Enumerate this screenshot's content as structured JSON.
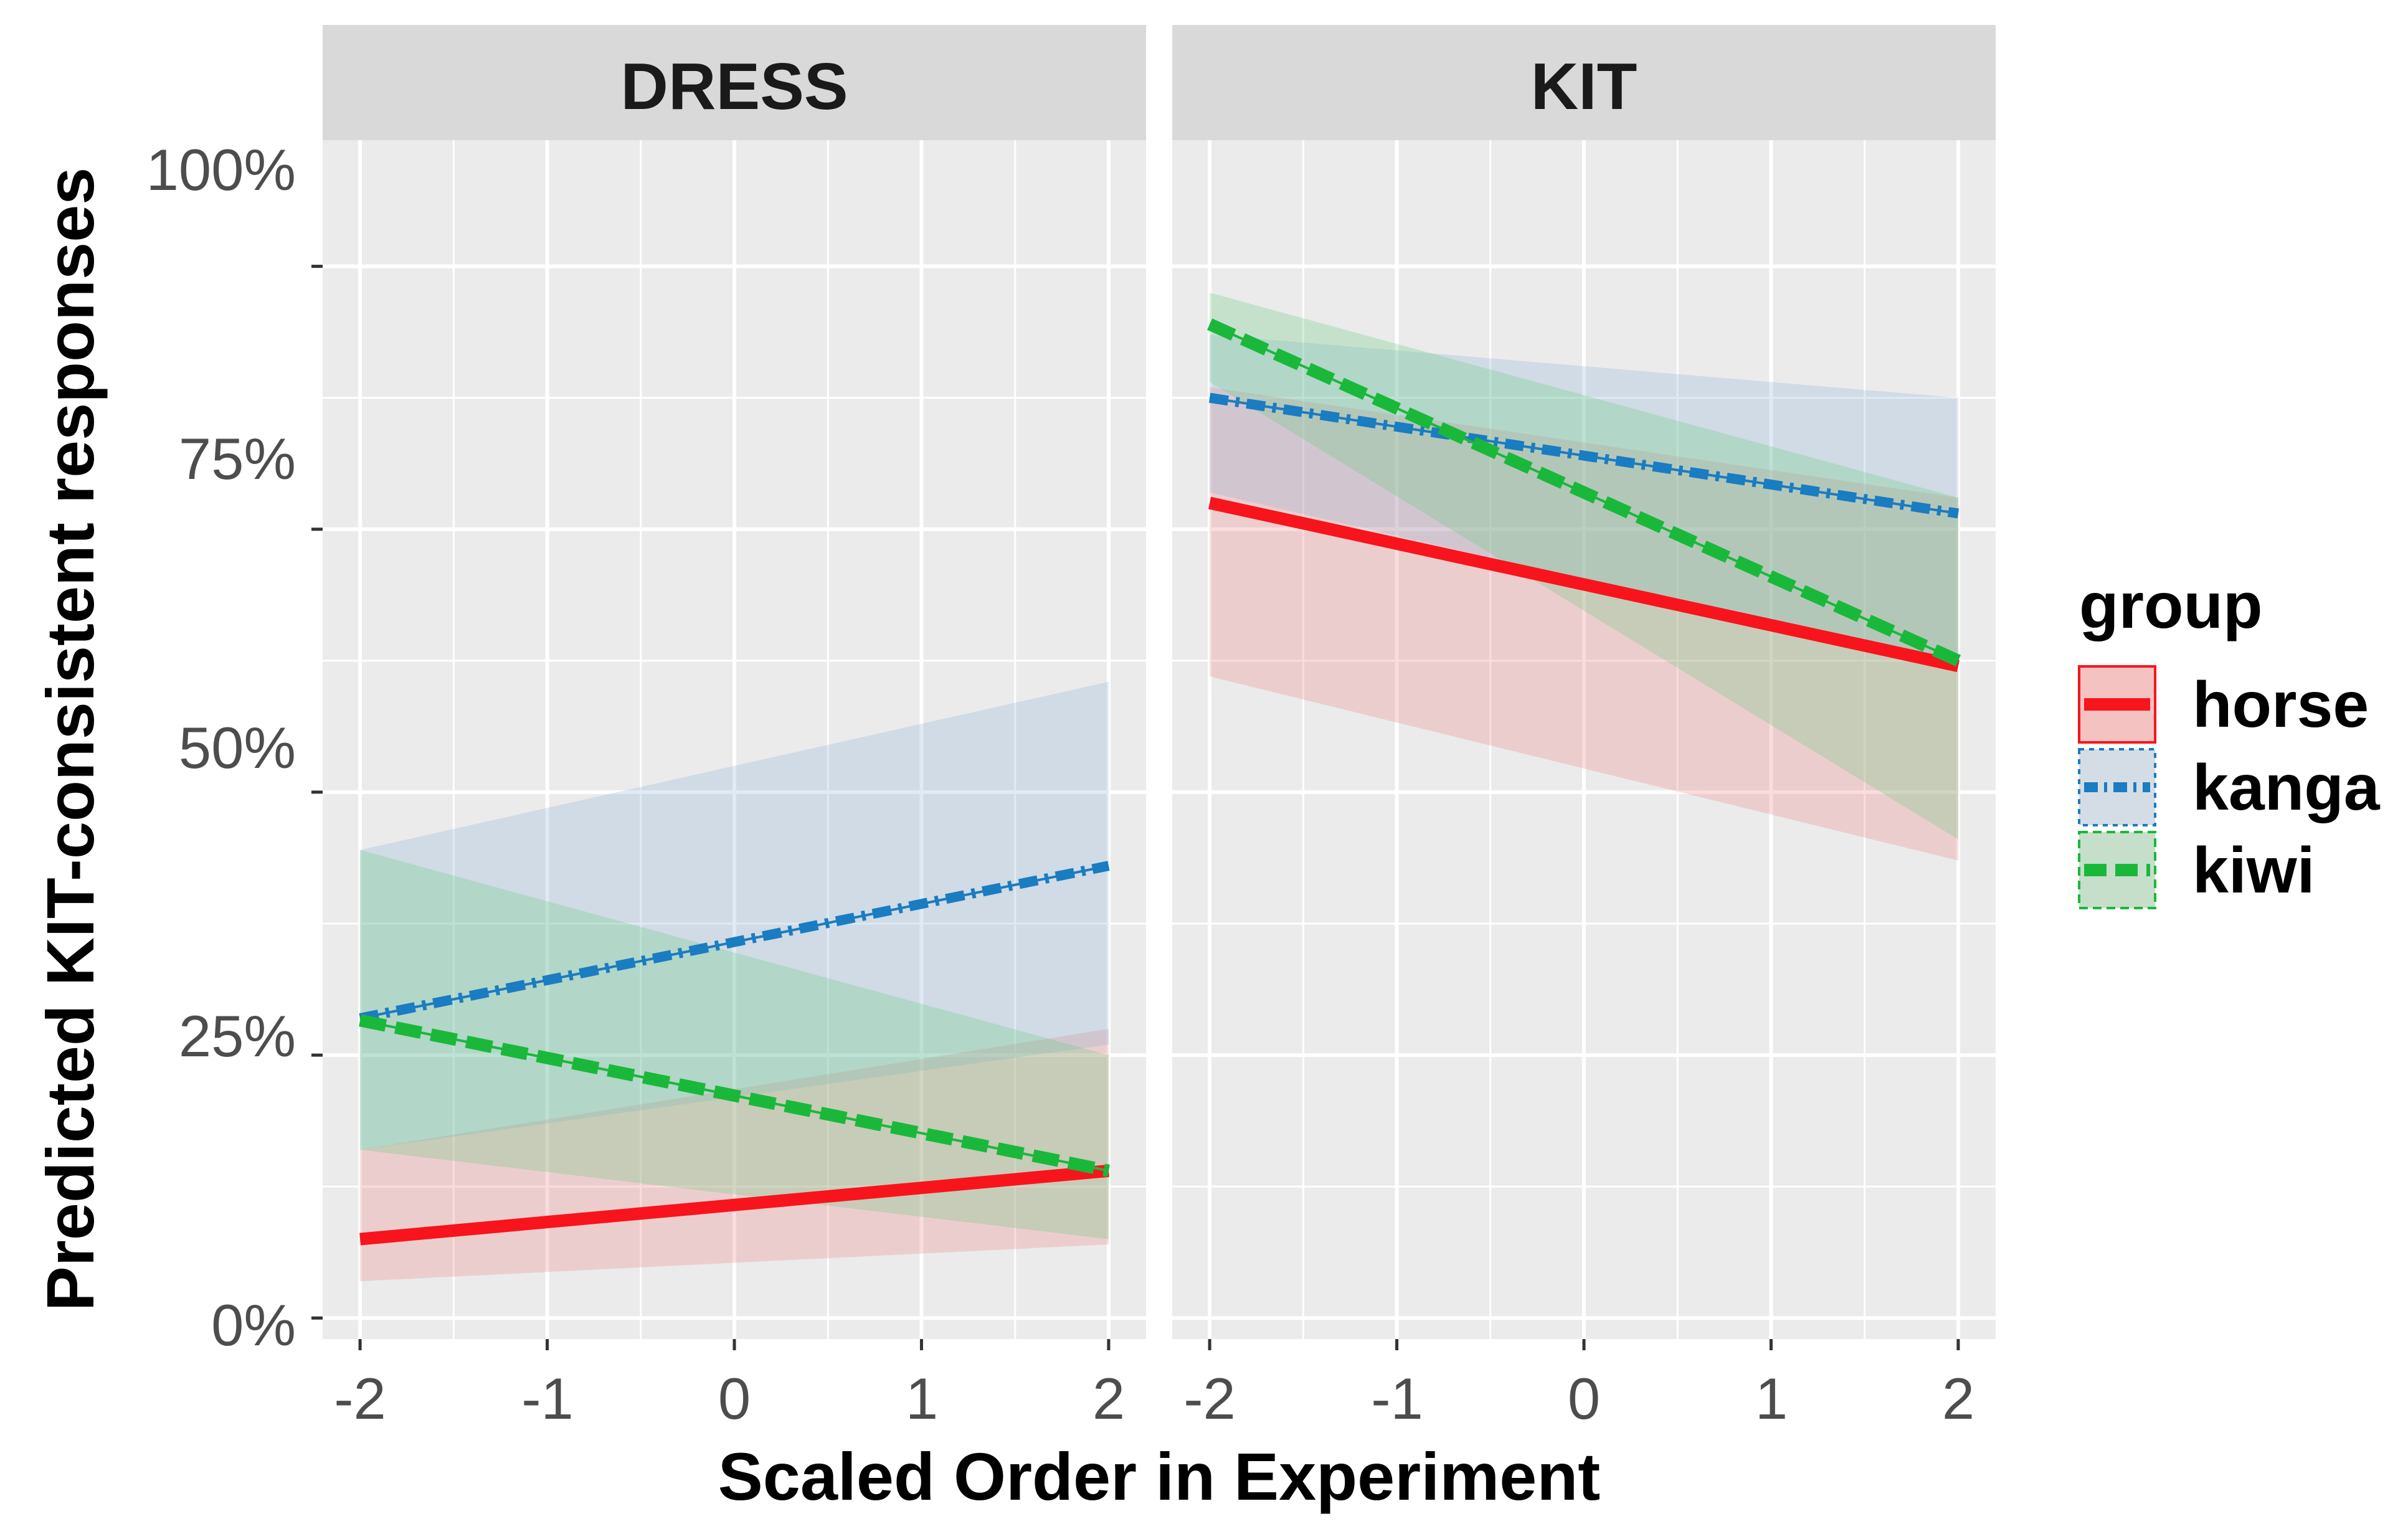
{
  "chart_data": {
    "type": "line",
    "ylabel": "Predicted KIT-consistent responses",
    "xlabel": "Scaled Order in Experiment",
    "x_ticks": [
      "-2",
      "-1",
      "0",
      "1",
      "2"
    ],
    "x_tick_values": [
      -2,
      -1,
      0,
      1,
      2
    ],
    "y_ticks": [
      "0%",
      "25%",
      "50%",
      "75%",
      "100%"
    ],
    "y_tick_values": [
      0,
      25,
      50,
      75,
      100
    ],
    "xlim": [
      -2.2,
      2.2
    ],
    "ylim": [
      -2,
      112
    ],
    "grid": true,
    "legend": {
      "title": "group",
      "placement": "right",
      "entries": [
        "horse",
        "kanga",
        "kiwi"
      ]
    },
    "series_styles": [
      {
        "name": "horse",
        "color": "#f8141c",
        "fill": "#f08080",
        "dash": "solid"
      },
      {
        "name": "kanga",
        "color": "#1a7cc1",
        "fill": "#8cb4d8",
        "dash": "dotdash"
      },
      {
        "name": "kiwi",
        "color": "#1ab83a",
        "fill": "#66c87e",
        "dash": "dashed"
      }
    ],
    "panels": [
      {
        "title": "DRESS",
        "x": [
          -2,
          2
        ],
        "series": [
          {
            "name": "horse",
            "values": [
              7.5,
              14
            ],
            "lower": [
              3.5,
              7
            ],
            "upper": [
              16,
              27.5
            ]
          },
          {
            "name": "kanga",
            "values": [
              28.5,
              43
            ],
            "lower": [
              16,
              26
            ],
            "upper": [
              44.5,
              60.5
            ]
          },
          {
            "name": "kiwi",
            "values": [
              28.3,
              14
            ],
            "lower": [
              16,
              7.5
            ],
            "upper": [
              44.5,
              25
            ]
          }
        ]
      },
      {
        "title": "KIT",
        "x": [
          -2,
          2
        ],
        "series": [
          {
            "name": "horse",
            "values": [
              77.5,
              62
            ],
            "lower": [
              61,
              43.5
            ],
            "upper": [
              88.5,
              78
            ]
          },
          {
            "name": "kanga",
            "values": [
              87.5,
              76.5
            ],
            "lower": [
              78.5,
              62
            ],
            "upper": [
              93.5,
              87.5
            ]
          },
          {
            "name": "kiwi",
            "values": [
              94.5,
              62.5
            ],
            "lower": [
              89,
              45.5
            ],
            "upper": [
              97.5,
              78
            ]
          }
        ]
      }
    ]
  }
}
